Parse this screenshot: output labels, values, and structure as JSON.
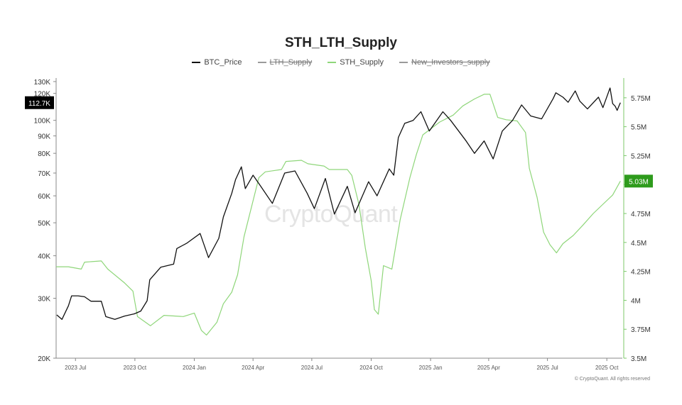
{
  "chart_data": {
    "type": "line",
    "title": "STH_LTH_Supply",
    "legend": [
      {
        "name": "BTC_Price",
        "color": "#111111",
        "struck": false
      },
      {
        "name": "LTH_Supply",
        "color": "#9a9a9a",
        "struck": true
      },
      {
        "name": "STH_Supply",
        "color": "#8fd67a",
        "struck": false
      },
      {
        "name": "New_Investors_supply",
        "color": "#9a9a9a",
        "struck": true
      }
    ],
    "x_ticks": [
      "2023 Jul",
      "2023 Oct",
      "2024 Jan",
      "2024 Apr",
      "2024 Jul",
      "2024 Oct",
      "2025 Jan",
      "2025 Apr",
      "2025 Jul",
      "2025 Oct"
    ],
    "x_tick_dates": [
      "2023-07-01",
      "2023-10-01",
      "2024-01-01",
      "2024-04-01",
      "2024-07-01",
      "2024-10-01",
      "2025-01-01",
      "2025-04-01",
      "2025-07-01",
      "2025-10-01"
    ],
    "xlim": [
      "2023-06-01",
      "2025-10-25"
    ],
    "left_axis": {
      "scale": "log",
      "ticks": [
        "130K",
        "120K",
        "100K",
        "90K",
        "80K",
        "70K",
        "60K",
        "50K",
        "40K",
        "30K",
        "20K"
      ],
      "tick_values": [
        130000,
        120000,
        100000,
        90000,
        80000,
        70000,
        60000,
        50000,
        40000,
        30000,
        20000
      ],
      "range": [
        20000,
        130000
      ]
    },
    "right_axis": {
      "scale": "linear",
      "ticks": [
        "5.75M",
        "5.5M",
        "5.25M",
        "5M",
        "4.75M",
        "4.5M",
        "4.25M",
        "4M",
        "3.75M",
        "3.5M"
      ],
      "tick_values": [
        5.75,
        5.5,
        5.25,
        5.0,
        4.75,
        4.5,
        4.25,
        4.0,
        3.75,
        3.5
      ],
      "range": [
        3.5,
        5.89
      ],
      "unit": "M"
    },
    "series": [
      {
        "name": "BTC_Price",
        "axis": "left",
        "color": "#111111",
        "points": [
          [
            "2023-06-02",
            26800
          ],
          [
            "2023-06-10",
            26000
          ],
          [
            "2023-06-20",
            28500
          ],
          [
            "2023-06-25",
            30500
          ],
          [
            "2023-07-05",
            30500
          ],
          [
            "2023-07-15",
            30300
          ],
          [
            "2023-07-25",
            29400
          ],
          [
            "2023-08-10",
            29400
          ],
          [
            "2023-08-17",
            26500
          ],
          [
            "2023-08-31",
            26000
          ],
          [
            "2023-09-15",
            26600
          ],
          [
            "2023-09-30",
            27000
          ],
          [
            "2023-10-10",
            27500
          ],
          [
            "2023-10-20",
            29500
          ],
          [
            "2023-10-24",
            34000
          ],
          [
            "2023-11-10",
            37000
          ],
          [
            "2023-11-30",
            37800
          ],
          [
            "2023-12-05",
            42000
          ],
          [
            "2023-12-20",
            43500
          ],
          [
            "2024-01-10",
            46500
          ],
          [
            "2024-01-23",
            39500
          ],
          [
            "2024-02-08",
            45000
          ],
          [
            "2024-02-15",
            52000
          ],
          [
            "2024-02-28",
            61000
          ],
          [
            "2024-03-05",
            67000
          ],
          [
            "2024-03-14",
            73000
          ],
          [
            "2024-03-20",
            63000
          ],
          [
            "2024-04-01",
            69000
          ],
          [
            "2024-04-13",
            64000
          ],
          [
            "2024-05-01",
            57000
          ],
          [
            "2024-05-20",
            70000
          ],
          [
            "2024-06-05",
            71000
          ],
          [
            "2024-06-24",
            61000
          ],
          [
            "2024-07-05",
            55000
          ],
          [
            "2024-07-22",
            67500
          ],
          [
            "2024-08-05",
            53000
          ],
          [
            "2024-08-25",
            64000
          ],
          [
            "2024-09-06",
            53500
          ],
          [
            "2024-09-27",
            66000
          ],
          [
            "2024-10-10",
            60000
          ],
          [
            "2024-10-29",
            72000
          ],
          [
            "2024-11-05",
            69000
          ],
          [
            "2024-11-12",
            89000
          ],
          [
            "2024-11-22",
            98000
          ],
          [
            "2024-12-05",
            100000
          ],
          [
            "2024-12-17",
            106000
          ],
          [
            "2024-12-30",
            93000
          ],
          [
            "2025-01-20",
            106000
          ],
          [
            "2025-02-01",
            100000
          ],
          [
            "2025-02-25",
            87000
          ],
          [
            "2025-03-10",
            80000
          ],
          [
            "2025-03-25",
            87000
          ],
          [
            "2025-04-08",
            77000
          ],
          [
            "2025-04-22",
            93000
          ],
          [
            "2025-05-08",
            100000
          ],
          [
            "2025-05-22",
            111000
          ],
          [
            "2025-06-05",
            103000
          ],
          [
            "2025-06-22",
            101000
          ],
          [
            "2025-07-10",
            116000
          ],
          [
            "2025-07-14",
            120500
          ],
          [
            "2025-07-25",
            117000
          ],
          [
            "2025-08-02",
            113000
          ],
          [
            "2025-08-13",
            122000
          ],
          [
            "2025-08-20",
            114000
          ],
          [
            "2025-09-01",
            108000
          ],
          [
            "2025-09-18",
            117000
          ],
          [
            "2025-09-25",
            109000
          ],
          [
            "2025-10-06",
            124500
          ],
          [
            "2025-10-10",
            112000
          ],
          [
            "2025-10-14",
            110000
          ],
          [
            "2025-10-17",
            107000
          ],
          [
            "2025-10-20",
            110500
          ],
          [
            "2025-10-22",
            112700
          ]
        ]
      },
      {
        "name": "STH_Supply",
        "axis": "right",
        "color": "#8fd67a",
        "points": [
          [
            "2023-06-01",
            4.29
          ],
          [
            "2023-06-20",
            4.29
          ],
          [
            "2023-07-10",
            4.27
          ],
          [
            "2023-07-15",
            4.33
          ],
          [
            "2023-08-10",
            4.34
          ],
          [
            "2023-08-20",
            4.27
          ],
          [
            "2023-09-15",
            4.15
          ],
          [
            "2023-09-28",
            4.08
          ],
          [
            "2023-10-05",
            3.86
          ],
          [
            "2023-10-15",
            3.82
          ],
          [
            "2023-10-25",
            3.78
          ],
          [
            "2023-11-15",
            3.87
          ],
          [
            "2023-12-15",
            3.86
          ],
          [
            "2024-01-01",
            3.89
          ],
          [
            "2024-01-12",
            3.74
          ],
          [
            "2024-01-20",
            3.7
          ],
          [
            "2024-02-05",
            3.81
          ],
          [
            "2024-02-15",
            3.97
          ],
          [
            "2024-02-28",
            4.07
          ],
          [
            "2024-03-08",
            4.22
          ],
          [
            "2024-03-18",
            4.55
          ],
          [
            "2024-04-01",
            4.86
          ],
          [
            "2024-04-10",
            5.06
          ],
          [
            "2024-04-20",
            5.11
          ],
          [
            "2024-05-15",
            5.13
          ],
          [
            "2024-05-22",
            5.2
          ],
          [
            "2024-06-15",
            5.21
          ],
          [
            "2024-06-25",
            5.18
          ],
          [
            "2024-07-20",
            5.16
          ],
          [
            "2024-07-28",
            5.13
          ],
          [
            "2024-08-25",
            5.13
          ],
          [
            "2024-09-01",
            5.08
          ],
          [
            "2024-09-12",
            4.83
          ],
          [
            "2024-09-22",
            4.45
          ],
          [
            "2024-10-01",
            4.17
          ],
          [
            "2024-10-06",
            3.92
          ],
          [
            "2024-10-12",
            3.88
          ],
          [
            "2024-10-20",
            4.3
          ],
          [
            "2024-11-02",
            4.27
          ],
          [
            "2024-11-15",
            4.7
          ],
          [
            "2024-11-30",
            5.06
          ],
          [
            "2024-12-10",
            5.26
          ],
          [
            "2024-12-20",
            5.43
          ],
          [
            "2025-01-15",
            5.54
          ],
          [
            "2025-02-05",
            5.6
          ],
          [
            "2025-02-20",
            5.68
          ],
          [
            "2025-03-10",
            5.74
          ],
          [
            "2025-03-25",
            5.78
          ],
          [
            "2025-04-03",
            5.78
          ],
          [
            "2025-04-15",
            5.58
          ],
          [
            "2025-04-28",
            5.56
          ],
          [
            "2025-05-15",
            5.55
          ],
          [
            "2025-05-28",
            5.45
          ],
          [
            "2025-06-03",
            5.14
          ],
          [
            "2025-06-15",
            4.89
          ],
          [
            "2025-06-25",
            4.59
          ],
          [
            "2025-07-05",
            4.48
          ],
          [
            "2025-07-15",
            4.41
          ],
          [
            "2025-07-25",
            4.49
          ],
          [
            "2025-08-10",
            4.56
          ],
          [
            "2025-08-25",
            4.65
          ],
          [
            "2025-09-10",
            4.75
          ],
          [
            "2025-09-25",
            4.83
          ],
          [
            "2025-10-10",
            4.91
          ],
          [
            "2025-10-22",
            5.03
          ]
        ]
      }
    ],
    "last_value_labels": [
      {
        "axis": "left",
        "text": "112.7K",
        "value": 112700,
        "bg": "#000000",
        "fg": "#ffffff"
      },
      {
        "axis": "right",
        "text": "5.03M",
        "value": 5.03,
        "bg": "#2e9b1c",
        "fg": "#ffffff"
      }
    ],
    "grid": false,
    "legend_position": "top-center"
  },
  "watermark": "CryptoQuant",
  "copyright": "© CryptoQuant. All rights reserved"
}
